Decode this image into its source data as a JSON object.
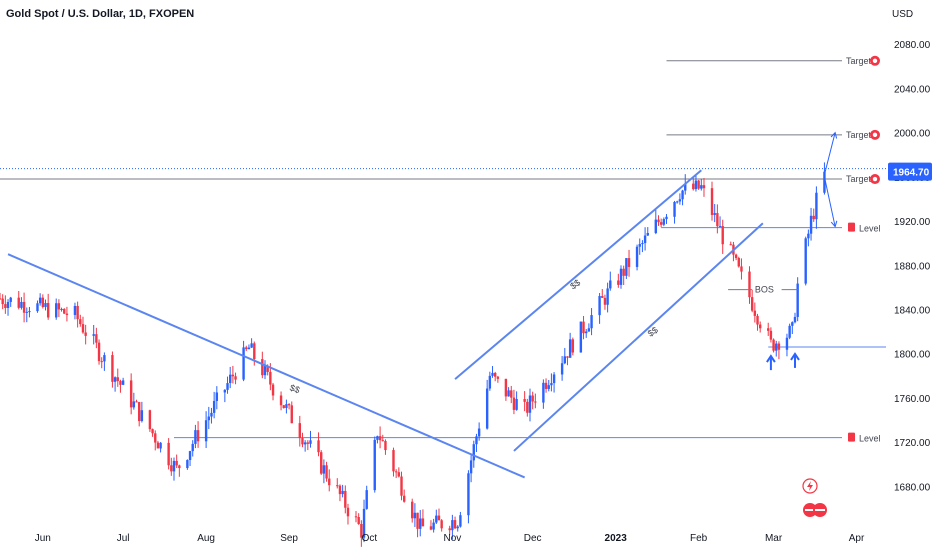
{
  "header": {
    "title": "Gold Spot / U.S. Dollar, 1D, FXOPEN"
  },
  "currency": "USD",
  "colors": {
    "up": "#2962ff",
    "down": "#f23645",
    "trend": "#5b85f0",
    "grid_text": "#131722",
    "price_tag": "#2962ff"
  },
  "chart_data": {
    "type": "candlestick",
    "title": "Gold Spot / U.S. Dollar, 1D, FXOPEN",
    "ylabel": "USD",
    "ylim": [
      1645,
      2120
    ],
    "y_ticks": [
      1680,
      1720,
      1760,
      1800,
      1840,
      1880,
      1920,
      1960,
      2000,
      2040,
      2080
    ],
    "y_tick_labels": [
      "1680.00",
      "1720.00",
      "1760.00",
      "1800.00",
      "1840.00",
      "1880.00",
      "1920.00",
      "1960.00",
      "2000.00",
      "2040.00",
      "2080.00"
    ],
    "x_ticks": [
      {
        "label": "Jun",
        "date": "2022-06-01"
      },
      {
        "label": "Jul",
        "date": "2022-07-01"
      },
      {
        "label": "Aug",
        "date": "2022-08-01"
      },
      {
        "label": "Sep",
        "date": "2022-09-01"
      },
      {
        "label": "Oct",
        "date": "2022-10-01"
      },
      {
        "label": "Nov",
        "date": "2022-11-01"
      },
      {
        "label": "Dec",
        "date": "2022-12-01"
      },
      {
        "label": "2023",
        "date": "2023-01-01"
      },
      {
        "label": "Feb",
        "date": "2023-02-01"
      },
      {
        "label": "Mar",
        "date": "2023-03-01"
      },
      {
        "label": "Apr",
        "date": "2023-04-01"
      }
    ],
    "x_range": [
      "2022-05-16",
      "2023-04-12"
    ],
    "last_price": 1964.7,
    "last_price_label": "1964.70",
    "target_levels": [
      2065,
      1998,
      1958
    ],
    "key_levels": [
      1914,
      1724
    ],
    "support_level": 1806,
    "target_label": "Target",
    "level_label": "Level",
    "bos_label": "BOS",
    "bos_price": 1858,
    "channel_label": "$$",
    "trendlines": [
      {
        "from": {
          "date": "2022-05-19",
          "price": 1890
        },
        "to": {
          "date": "2022-11-28",
          "price": 1688
        }
      },
      {
        "from": {
          "date": "2022-11-02",
          "price": 1777
        },
        "to": {
          "date": "2023-02-02",
          "price": 1966
        }
      },
      {
        "from": {
          "date": "2022-11-24",
          "price": 1712
        },
        "to": {
          "date": "2023-02-25",
          "price": 1918
        }
      }
    ],
    "markers": [
      {
        "type": "arrow-up",
        "date": "2023-02-28",
        "price": 1796
      },
      {
        "type": "arrow-up",
        "date": "2023-03-09",
        "price": 1798
      }
    ],
    "projection": [
      {
        "from": {
          "date": "2023-03-20",
          "price": 1962
        },
        "to": {
          "date": "2023-03-24",
          "price": 2000
        }
      },
      {
        "from": {
          "date": "2023-03-20",
          "price": 1960
        },
        "to": {
          "date": "2023-03-24",
          "price": 1915
        }
      }
    ]
  }
}
